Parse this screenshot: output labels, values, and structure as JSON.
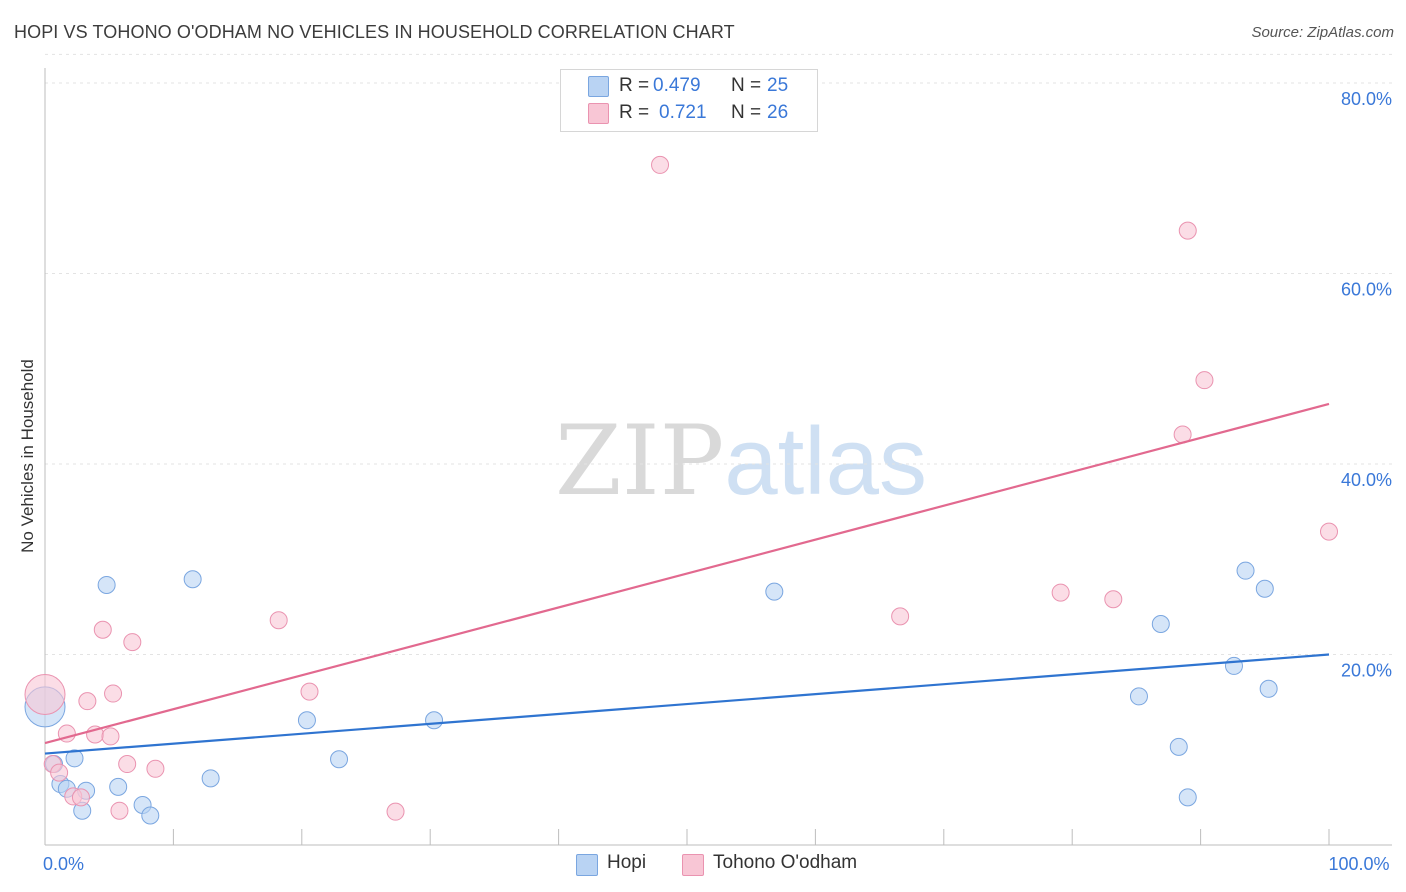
{
  "title": "HOPI VS TOHONO O'ODHAM NO VEHICLES IN HOUSEHOLD CORRELATION CHART",
  "source": "Source: ZipAtlas.com",
  "watermark": {
    "zip": "ZIP",
    "atlas": "atlas"
  },
  "colors": {
    "hopi_fill": "#b9d3f3",
    "hopi_stroke": "#7aa6e0",
    "hopi_line": "#2f74d0",
    "tohono_fill": "#f8c6d5",
    "tohono_stroke": "#ea93b0",
    "tohono_line": "#e2698f",
    "tick_label": "#3a78d8",
    "grid": "#e3e3e3"
  },
  "stats": [
    {
      "r_label": "R =",
      "r_value": "0.479",
      "n_label": "N =",
      "n_value": "25",
      "series": "hopi"
    },
    {
      "r_label": "R =",
      "r_value": "0.721",
      "n_label": "N =",
      "n_value": "26",
      "series": "tohono"
    }
  ],
  "legend": [
    {
      "label": "Hopi",
      "series": "hopi"
    },
    {
      "label": "Tohono O'odham",
      "series": "tohono"
    }
  ],
  "chart_data": {
    "type": "scatter",
    "title": "HOPI VS TOHONO O'ODHAM NO VEHICLES IN HOUSEHOLD CORRELATION CHART",
    "xlabel": "",
    "ylabel": "No Vehicles in Household",
    "xlim": [
      0,
      100
    ],
    "ylim": [
      0,
      83
    ],
    "x_tick_labels": [
      {
        "value": 0,
        "label": "0.0%"
      },
      {
        "value": 100,
        "label": "100.0%"
      }
    ],
    "y_ticks": [
      {
        "value": 20,
        "label": "20.0%"
      },
      {
        "value": 40,
        "label": "40.0%"
      },
      {
        "value": 60,
        "label": "60.0%"
      },
      {
        "value": 80,
        "label": "80.0%"
      }
    ],
    "x_minor_ticks": [
      10,
      20,
      30,
      40,
      50,
      60,
      70,
      80,
      90,
      100
    ],
    "grid": true,
    "series": [
      {
        "name": "Hopi",
        "key": "hopi",
        "trend": {
          "x": [
            0,
            100
          ],
          "y": [
            9.6,
            20.0
          ]
        },
        "points": [
          {
            "x": 0.0,
            "y": 14.5,
            "big": true
          },
          {
            "x": 0.7,
            "y": 8.5
          },
          {
            "x": 1.2,
            "y": 6.4
          },
          {
            "x": 1.7,
            "y": 5.9
          },
          {
            "x": 2.3,
            "y": 9.1
          },
          {
            "x": 2.9,
            "y": 3.6
          },
          {
            "x": 3.2,
            "y": 5.7
          },
          {
            "x": 4.8,
            "y": 27.3
          },
          {
            "x": 5.7,
            "y": 6.1
          },
          {
            "x": 7.6,
            "y": 4.2
          },
          {
            "x": 8.2,
            "y": 3.1
          },
          {
            "x": 11.5,
            "y": 27.9
          },
          {
            "x": 12.9,
            "y": 7.0
          },
          {
            "x": 20.4,
            "y": 13.1
          },
          {
            "x": 22.9,
            "y": 9.0
          },
          {
            "x": 30.3,
            "y": 13.1
          },
          {
            "x": 56.8,
            "y": 26.6
          },
          {
            "x": 85.2,
            "y": 15.6
          },
          {
            "x": 86.9,
            "y": 23.2
          },
          {
            "x": 88.3,
            "y": 10.3
          },
          {
            "x": 89.0,
            "y": 5.0
          },
          {
            "x": 92.6,
            "y": 18.8
          },
          {
            "x": 93.5,
            "y": 28.8
          },
          {
            "x": 95.0,
            "y": 26.9
          },
          {
            "x": 95.3,
            "y": 16.4
          }
        ]
      },
      {
        "name": "Tohono O'odham",
        "key": "tohono",
        "trend": {
          "x": [
            0,
            100
          ],
          "y": [
            10.7,
            46.3
          ]
        },
        "points": [
          {
            "x": 0.0,
            "y": 15.8,
            "big": true
          },
          {
            "x": 0.6,
            "y": 8.5
          },
          {
            "x": 1.1,
            "y": 7.6
          },
          {
            "x": 1.7,
            "y": 11.7
          },
          {
            "x": 2.2,
            "y": 5.1
          },
          {
            "x": 2.8,
            "y": 5.0
          },
          {
            "x": 3.3,
            "y": 15.1
          },
          {
            "x": 3.9,
            "y": 11.6
          },
          {
            "x": 4.5,
            "y": 22.6
          },
          {
            "x": 5.1,
            "y": 11.4
          },
          {
            "x": 5.3,
            "y": 15.9
          },
          {
            "x": 5.8,
            "y": 3.6
          },
          {
            "x": 6.4,
            "y": 8.5
          },
          {
            "x": 6.8,
            "y": 21.3
          },
          {
            "x": 8.6,
            "y": 8.0
          },
          {
            "x": 18.2,
            "y": 23.6
          },
          {
            "x": 20.6,
            "y": 16.1
          },
          {
            "x": 27.3,
            "y": 3.5
          },
          {
            "x": 47.9,
            "y": 71.4
          },
          {
            "x": 66.6,
            "y": 24.0
          },
          {
            "x": 79.1,
            "y": 26.5
          },
          {
            "x": 83.2,
            "y": 25.8
          },
          {
            "x": 88.6,
            "y": 43.1
          },
          {
            "x": 89.0,
            "y": 64.5
          },
          {
            "x": 90.3,
            "y": 48.8
          },
          {
            "x": 100.0,
            "y": 32.9
          }
        ]
      }
    ]
  }
}
